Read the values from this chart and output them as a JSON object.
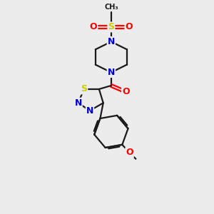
{
  "bg_color": "#ececec",
  "bond_color": "#1a1a1a",
  "bond_width": 1.6,
  "atom_colors": {
    "S": "#cccc00",
    "N": "#0000cc",
    "O": "#ff0000",
    "C": "#1a1a1a"
  },
  "font_size_atom": 9,
  "font_size_small": 8
}
